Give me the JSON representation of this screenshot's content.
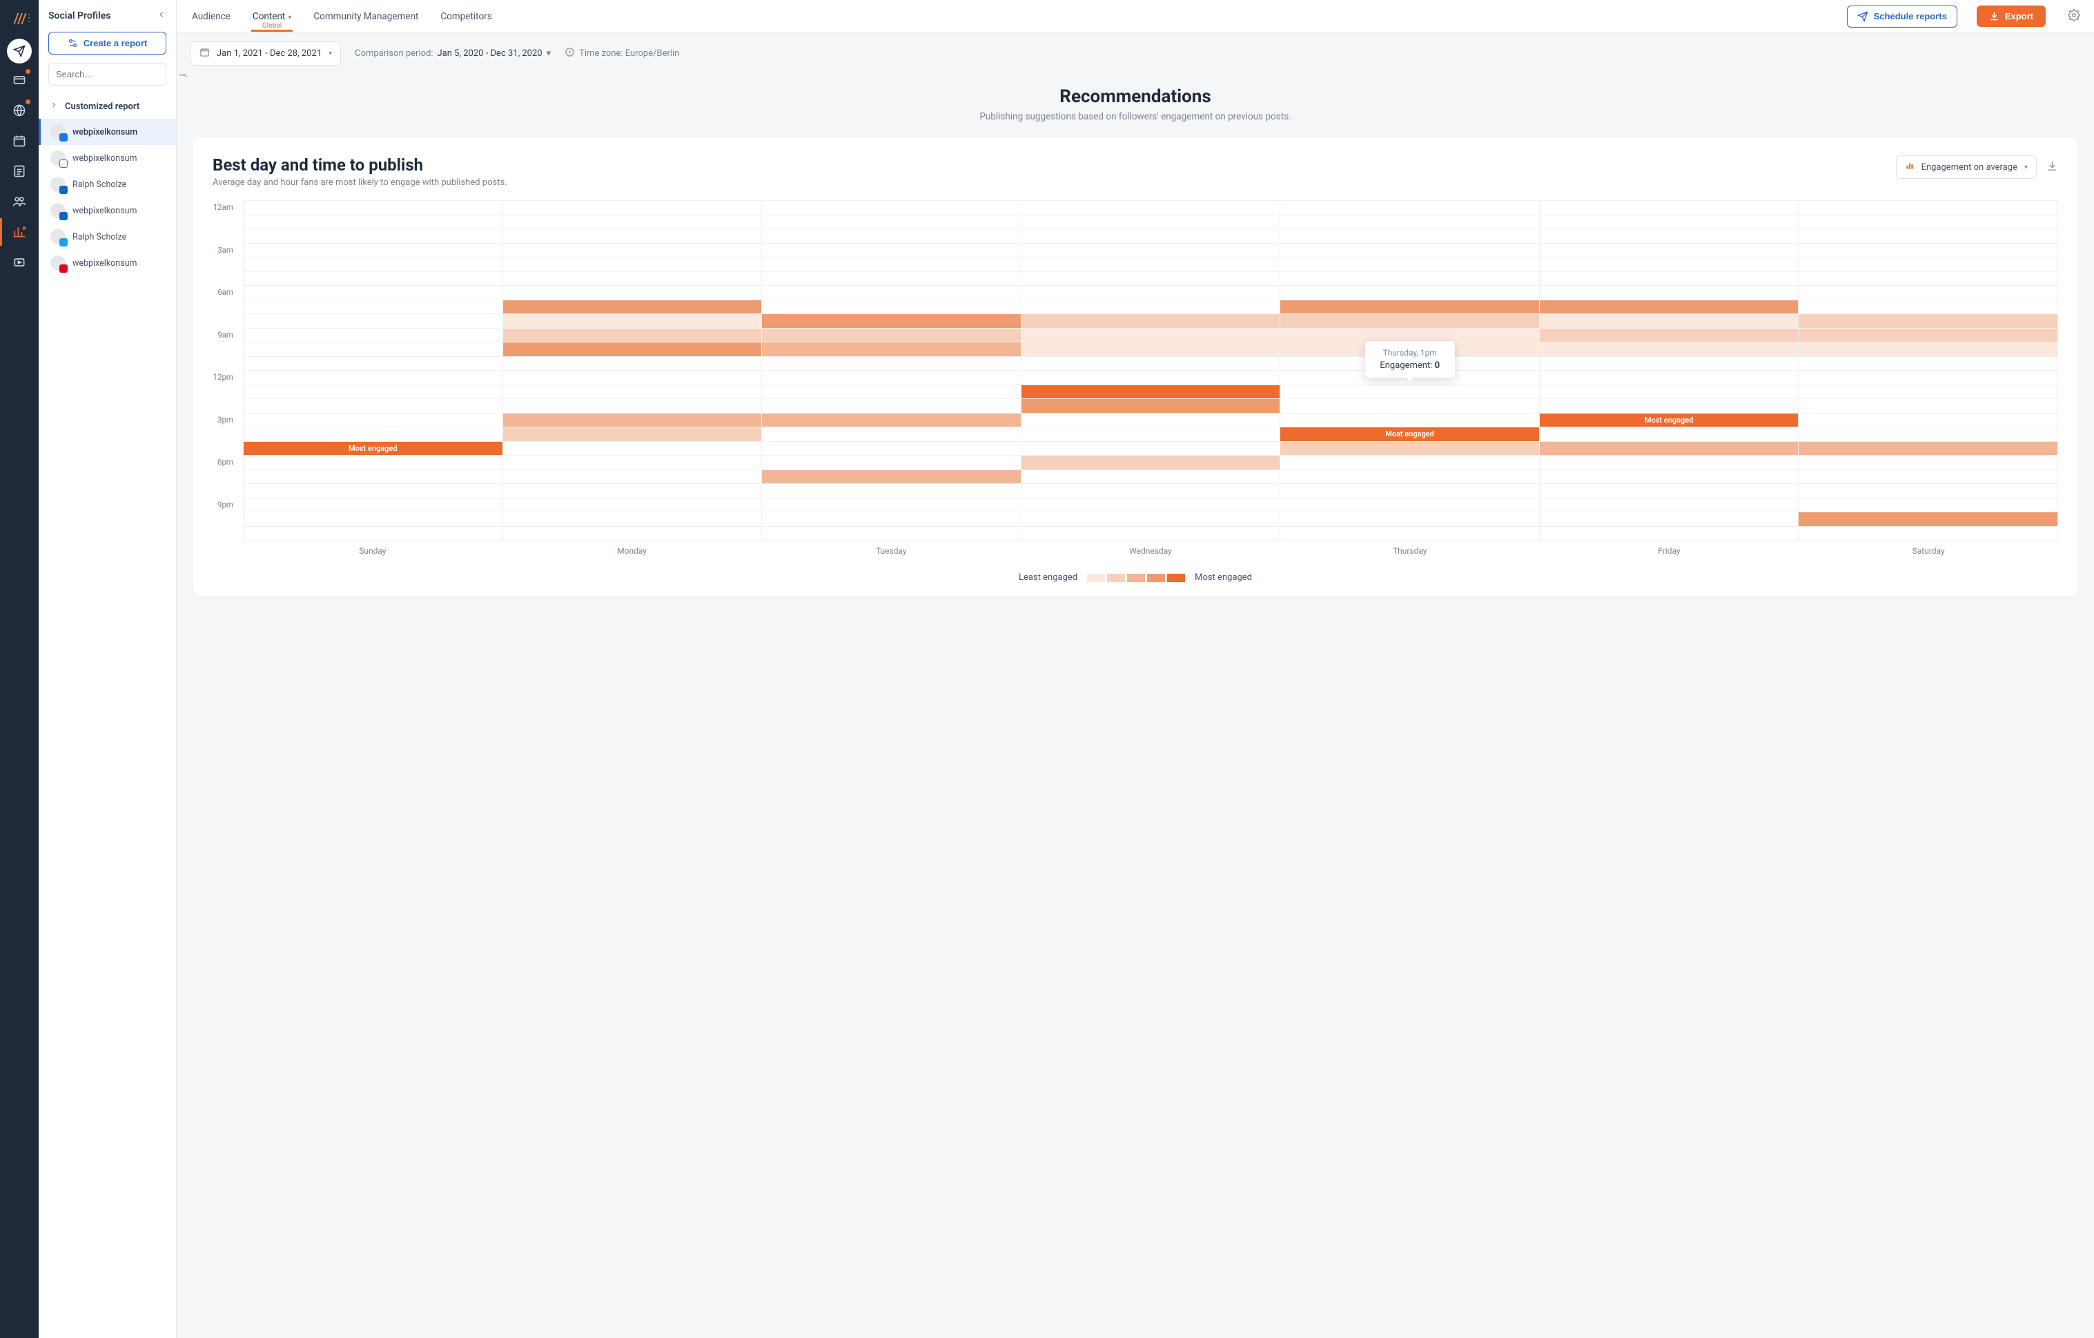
{
  "sidebar": {
    "title": "Social Profiles",
    "create_label": "Create a report",
    "search_placeholder": "Search...",
    "customized_label": "Customized report",
    "profiles": [
      {
        "name": "webpixelkonsum",
        "network": "fb",
        "active": true
      },
      {
        "name": "webpixelkonsum",
        "network": "ig",
        "active": false
      },
      {
        "name": "Ralph Scholze",
        "network": "li",
        "active": false
      },
      {
        "name": "webpixelkonsum",
        "network": "li",
        "active": false
      },
      {
        "name": "Ralph Scholze",
        "network": "tw",
        "active": false
      },
      {
        "name": "webpixelkonsum",
        "network": "pn",
        "active": false
      }
    ]
  },
  "topbar": {
    "tabs": [
      {
        "label": "Audience",
        "active": false
      },
      {
        "label": "Content",
        "active": true,
        "sub": "Global",
        "has_caret": true
      },
      {
        "label": "Community Management",
        "active": false
      },
      {
        "label": "Competitors",
        "active": false
      }
    ],
    "schedule_label": "Schedule reports",
    "export_label": "Export"
  },
  "filter": {
    "date_range": "Jan 1, 2021 - Dec 28, 2021",
    "comparison_label": "Comparison period:",
    "comparison_value": "Jan 5, 2020 - Dec 31, 2020",
    "timezone_label": "Time zone: Europe/Berlin"
  },
  "recommendations": {
    "title": "Recommendations",
    "subtitle": "Publishing suggestions based on followers' engagement on previous posts."
  },
  "chart": {
    "title": "Best day and time to publish",
    "description": "Average day and hour fans are most likely to engage with published posts.",
    "metric_label": "Engagement on average",
    "days": [
      "Sunday",
      "Monday",
      "Tuesday",
      "Wednesday",
      "Thursday",
      "Friday",
      "Saturday"
    ],
    "hours_labels": [
      "12am",
      "3am",
      "6am",
      "9am",
      "12pm",
      "3pm",
      "6pm",
      "9pm"
    ],
    "rows": 24,
    "colors": {
      "c0": "#ffffff",
      "c1": "#fbe9de",
      "c2": "#f6d0ba",
      "c3": "#f2b695",
      "c4": "#ee9c6f",
      "c5": "#ec6b2d"
    },
    "legend_scale": [
      "#fbe9de",
      "#f6d0ba",
      "#f2b695",
      "#ee9c6f",
      "#ec6b2d"
    ],
    "least_label": "Least engaged",
    "most_label": "Most engaged",
    "most_engaged_text": "Most engaged",
    "tooltip": {
      "label": "Thursday, 1pm",
      "metric": "Engagement:",
      "value": "0",
      "day_index": 4,
      "hour_index": 13
    },
    "cells": [
      [
        0,
        0,
        0,
        0,
        0,
        0,
        0
      ],
      [
        0,
        0,
        0,
        0,
        0,
        0,
        0
      ],
      [
        0,
        0,
        0,
        0,
        0,
        0,
        0
      ],
      [
        0,
        0,
        0,
        0,
        0,
        0,
        0
      ],
      [
        0,
        0,
        0,
        0,
        0,
        0,
        0
      ],
      [
        0,
        0,
        0,
        0,
        0,
        0,
        0
      ],
      [
        0,
        0,
        0,
        0,
        0,
        0,
        0
      ],
      [
        0,
        4,
        0,
        0,
        4,
        4,
        0
      ],
      [
        0,
        1,
        4,
        2,
        2,
        1,
        2
      ],
      [
        0,
        2,
        2,
        1,
        1,
        2,
        2
      ],
      [
        0,
        4,
        3,
        1,
        1,
        1,
        1
      ],
      [
        0,
        0,
        0,
        0,
        0,
        0,
        0
      ],
      [
        0,
        0,
        0,
        0,
        0,
        0,
        0
      ],
      [
        0,
        0,
        0,
        5,
        0,
        0,
        0
      ],
      [
        0,
        0,
        0,
        4,
        0,
        0,
        0
      ],
      [
        0,
        3,
        3,
        0,
        0,
        "E",
        0
      ],
      [
        0,
        2,
        0,
        0,
        "E",
        0,
        0
      ],
      [
        "E",
        0,
        0,
        0,
        2,
        3,
        3
      ],
      [
        0,
        0,
        0,
        2,
        0,
        0,
        0
      ],
      [
        0,
        0,
        3,
        0,
        0,
        0,
        0
      ],
      [
        0,
        0,
        0,
        0,
        0,
        0,
        0
      ],
      [
        0,
        0,
        0,
        0,
        0,
        0,
        0
      ],
      [
        0,
        0,
        0,
        0,
        0,
        0,
        4
      ],
      [
        0,
        0,
        0,
        0,
        0,
        0,
        0
      ]
    ]
  }
}
